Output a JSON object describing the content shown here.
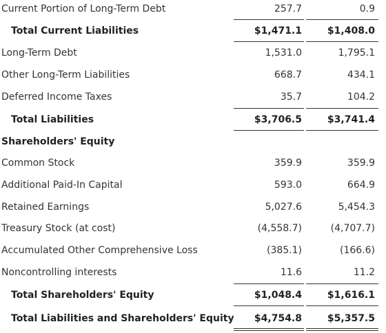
{
  "rows": [
    {
      "label": "Current Portion of Long-Term Debt",
      "v1": "257.7",
      "v2": "0.9"
    },
    {
      "label": "Total Current Liabilities",
      "v1": "$1,471.1",
      "v2": "$1,408.0"
    },
    {
      "label": "Long-Term Debt",
      "v1": "1,531.0",
      "v2": "1,795.1"
    },
    {
      "label": "Other Long-Term Liabilities",
      "v1": "668.7",
      "v2": "434.1"
    },
    {
      "label": "Deferred Income Taxes",
      "v1": "35.7",
      "v2": "104.2"
    },
    {
      "label": "Total Liabilities",
      "v1": "$3,706.5",
      "v2": "$3,741.4"
    },
    {
      "label": "Shareholders' Equity"
    },
    {
      "label": "Common Stock",
      "v1": "359.9",
      "v2": "359.9"
    },
    {
      "label": "Additional Paid-In Capital",
      "v1": "593.0",
      "v2": "664.9"
    },
    {
      "label": "Retained Earnings",
      "v1": "5,027.6",
      "v2": "5,454.3"
    },
    {
      "label": "Treasury Stock (at cost)",
      "v1": "(4,558.7)",
      "v2": "(4,707.7)"
    },
    {
      "label": "Accumulated Other Comprehensive Loss",
      "v1": "(385.1)",
      "v2": "(166.6)"
    },
    {
      "label": "Noncontrolling interests",
      "v1": "11.6",
      "v2": "11.2"
    },
    {
      "label": "Total Shareholders' Equity",
      "v1": "$1,048.4",
      "v2": "$1,616.1"
    },
    {
      "label": "Total Liabilities and Shareholders' Equity",
      "v1": "$4,754.8",
      "v2": "$5,357.5"
    }
  ]
}
